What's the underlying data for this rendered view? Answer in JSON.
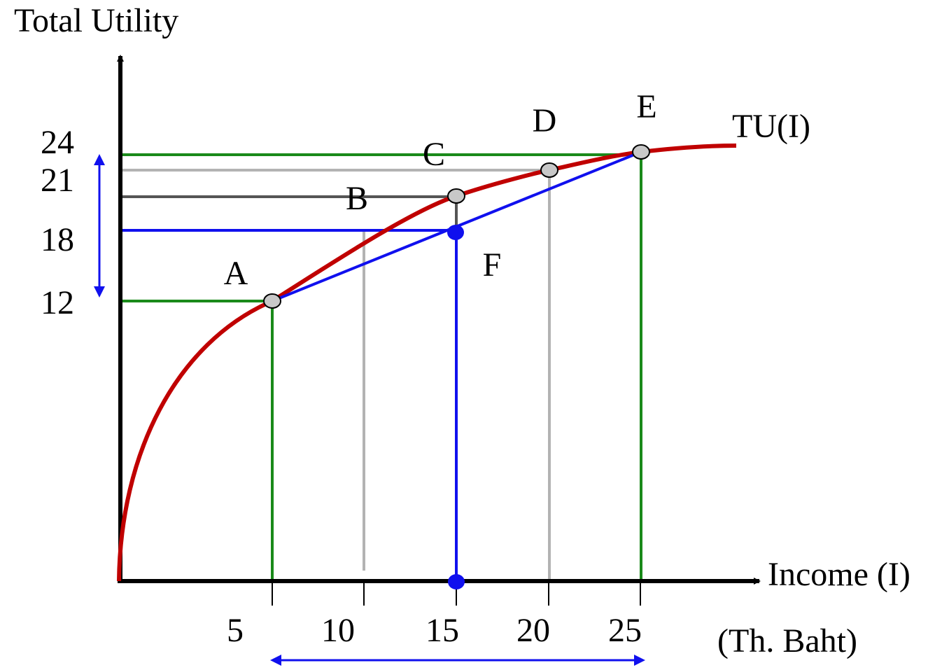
{
  "y_axis": {
    "label": "Total Utility",
    "ticks": [
      "24",
      "21",
      "18",
      "12"
    ]
  },
  "x_axis": {
    "label": "Income (I)",
    "unit": "(Th. Baht)",
    "ticks": [
      "5",
      "10",
      "15",
      "20",
      "25"
    ]
  },
  "curve": {
    "label": "TU(I)"
  },
  "points": [
    "A",
    "B",
    "C",
    "D",
    "E",
    "F"
  ]
}
